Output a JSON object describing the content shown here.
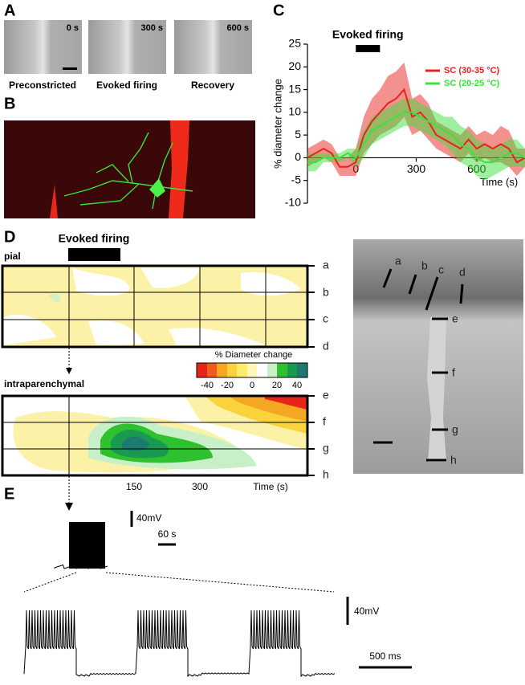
{
  "panel_labels": [
    "A",
    "B",
    "C",
    "D",
    "E"
  ],
  "panel_a": {
    "timestamps": [
      "0 s",
      "300 s",
      "600 s"
    ],
    "captions": [
      "Preconstricted",
      "Evoked firing",
      "Recovery"
    ]
  },
  "chart_data": {
    "type": "line",
    "ylabel": "% diameter change",
    "xlabel": "Time (s)",
    "stimulus": {
      "label": "Evoked firing",
      "start": 0,
      "end": 120
    },
    "x": [
      -240,
      -200,
      -160,
      -120,
      -80,
      -40,
      0,
      40,
      80,
      120,
      160,
      200,
      240,
      280,
      320,
      360,
      400,
      440,
      480,
      520,
      560,
      600,
      640,
      680,
      720,
      760,
      800,
      840
    ],
    "series": [
      {
        "name": "SC (30-35 °C)",
        "color": "#e8231e",
        "values": [
          0,
          1,
          2,
          1,
          -2,
          -2,
          -1,
          5,
          8,
          10,
          12,
          13,
          15,
          9,
          10,
          8,
          5,
          4,
          3,
          2,
          4,
          2,
          3,
          2,
          3,
          2,
          -1,
          0
        ],
        "errors": [
          2,
          2,
          2,
          2,
          2,
          2,
          3,
          4,
          5,
          5,
          6,
          6,
          6,
          4,
          4,
          4,
          3,
          3,
          3,
          3,
          3,
          3,
          3,
          3,
          4,
          4,
          3,
          2
        ]
      },
      {
        "name": "SC (20-25 °C)",
        "color": "#3ee03e",
        "values": [
          -1,
          -1,
          0,
          0,
          0,
          1,
          0,
          3,
          6,
          7,
          8,
          9,
          10,
          10,
          9,
          8,
          7,
          6,
          5,
          3,
          2,
          0,
          -1,
          -1,
          0,
          1,
          1,
          0
        ],
        "errors": [
          2,
          2,
          1,
          1,
          1,
          1,
          2,
          3,
          3,
          3,
          3,
          3,
          3,
          3,
          3,
          3,
          3,
          3,
          4,
          4,
          4,
          4,
          4,
          3,
          3,
          3,
          3,
          2
        ]
      }
    ],
    "xlim": [
      -240,
      840
    ],
    "ylim": [
      -10,
      25
    ],
    "xticks": [
      0,
      300,
      600
    ],
    "yticks": [
      -10,
      -5,
      0,
      5,
      10,
      15,
      20,
      25
    ],
    "legend": "upper right"
  },
  "panel_d": {
    "stimulus_label": "Evoked firing",
    "pial_label": "pial",
    "intraparenchymal_label": "intraparenchymal",
    "pial_rows": [
      "a",
      "b",
      "c",
      "d"
    ],
    "intra_rows": [
      "e",
      "f",
      "g",
      "h"
    ],
    "colorbar_title": "% Diameter change",
    "colorbar_ticks": [
      -40,
      -20,
      0,
      20,
      40
    ],
    "time_labels": [
      "150",
      "300",
      "Time (s)"
    ],
    "image_labels": [
      "a",
      "b",
      "c",
      "d",
      "e",
      "f",
      "g",
      "h"
    ]
  },
  "panel_e": {
    "scale_labels": [
      "40mV",
      "60 s",
      "40mV",
      "500 ms"
    ]
  }
}
